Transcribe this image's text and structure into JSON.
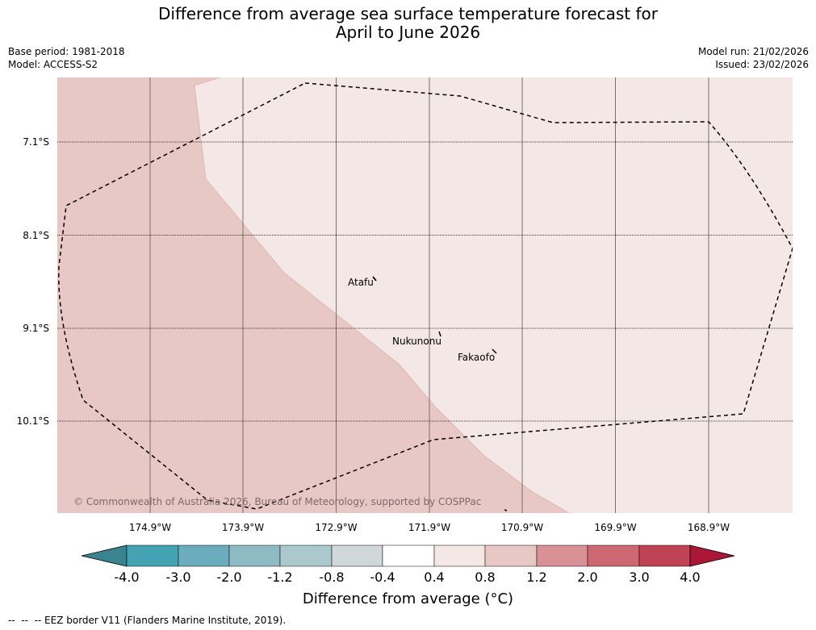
{
  "title": {
    "line1": "Difference from average sea surface temperature forecast for",
    "line2": "April to June 2026"
  },
  "meta_left": {
    "base_period": "Base period: 1981-2018",
    "model": "Model: ACCESS-S2"
  },
  "meta_right": {
    "model_run": "Model run: 21/02/2026",
    "issued": "Issued: 23/02/2026"
  },
  "map": {
    "latitude_labels": [
      "7.1°S",
      "8.1°S",
      "9.1°S",
      "10.1°S"
    ],
    "longitude_labels": [
      "174.9°W",
      "173.9°W",
      "172.9°W",
      "171.9°W",
      "170.9°W",
      "169.9°W",
      "168.9°W"
    ],
    "places": [
      "Atafu",
      "Nukunonu",
      "Fakaofo"
    ],
    "copyright": "© Commonwealth of Australia 2026, Bureau of Meteorology, supported by COSPPac",
    "colors": {
      "zone_0p8_to_1p2": "#e8c8c4",
      "zone_0p4_to_0p8": "#f4e8e6"
    }
  },
  "colorbar": {
    "tick_labels": [
      "-4.0",
      "-3.0",
      "-2.0",
      "-1.2",
      "-0.8",
      "-0.4",
      "0.4",
      "0.8",
      "1.2",
      "2.0",
      "3.0",
      "4.0"
    ],
    "colors": [
      "#3a8490",
      "#44a3b3",
      "#6badbe",
      "#8dbac3",
      "#abc8cc",
      "#d0d7d9",
      "#ffffff",
      "#f4e8e6",
      "#e8c8c4",
      "#d99096",
      "#cd6771",
      "#c04353",
      "#ab1737"
    ],
    "label": "Difference from average (°C)"
  },
  "footer": {
    "note": "--  --  -- EEZ border V11 (Flanders Marine Institute, 2019)."
  }
}
